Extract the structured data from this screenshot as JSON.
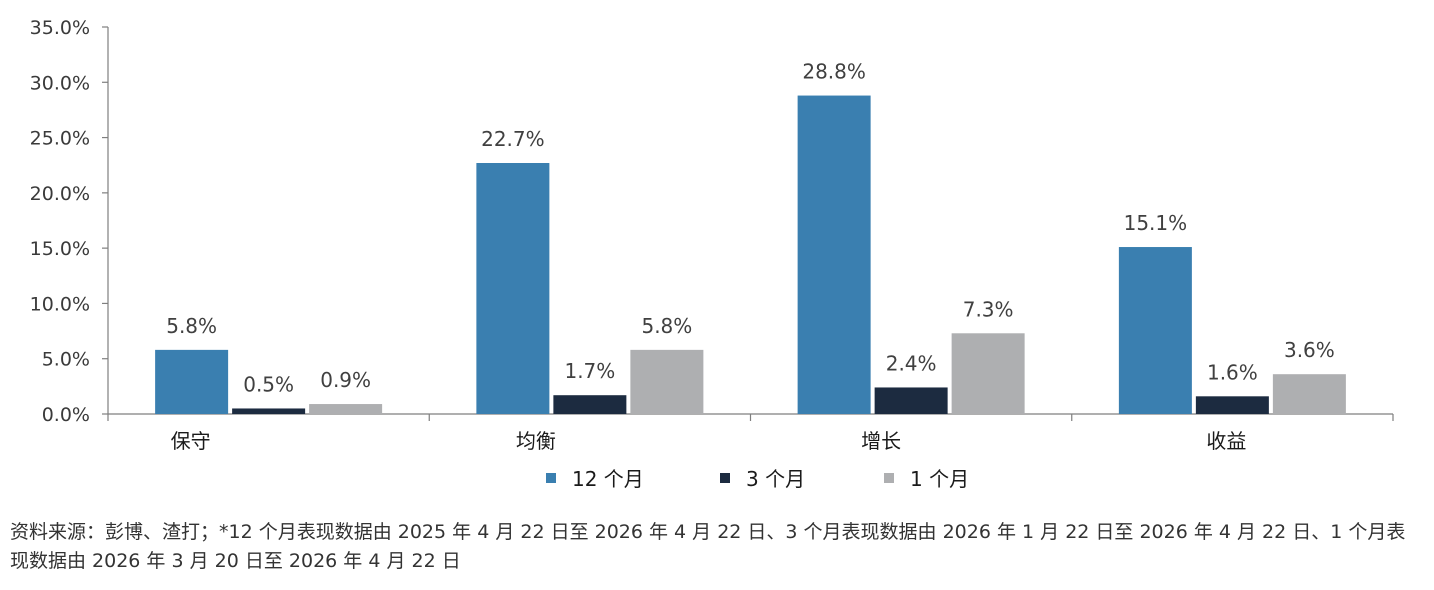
{
  "chart_data": {
    "type": "bar",
    "categories": [
      "保守",
      "均衡",
      "增长",
      "收益"
    ],
    "series": [
      {
        "name": "12 个月",
        "values": [
          5.8,
          22.7,
          28.8,
          15.1
        ],
        "labels": [
          "5.8%",
          "22.7%",
          "28.8%",
          "15.1%"
        ],
        "color": "#3a7fb0"
      },
      {
        "name": "3 个月",
        "values": [
          0.5,
          1.7,
          2.4,
          1.6
        ],
        "labels": [
          "0.5%",
          "1.7%",
          "2.4%",
          "1.6%"
        ],
        "color": "#1c2b40"
      },
      {
        "name": "1 个月",
        "values": [
          0.9,
          5.8,
          7.3,
          3.6
        ],
        "labels": [
          "0.9%",
          "5.8%",
          "7.3%",
          "3.6%"
        ],
        "color": "#aeafb1"
      }
    ],
    "ylim": [
      0,
      35
    ],
    "yticks": [
      "0.0%",
      "5.0%",
      "10.0%",
      "15.0%",
      "20.0%",
      "25.0%",
      "30.0%",
      "35.0%"
    ],
    "legend_position": "bottom",
    "grid": false
  },
  "source_note": "资料来源：彭博、渣打；*12 个月表现数据由 2025 年 4 月 22 日至 2026 年 4 月 22 日、3 个月表现数据由 2026 年 1 月 22 日至 2026 年 4 月 22 日、1 个月表现数据由 2026 年 3 月 20 日至 2026 年 4 月 22 日"
}
